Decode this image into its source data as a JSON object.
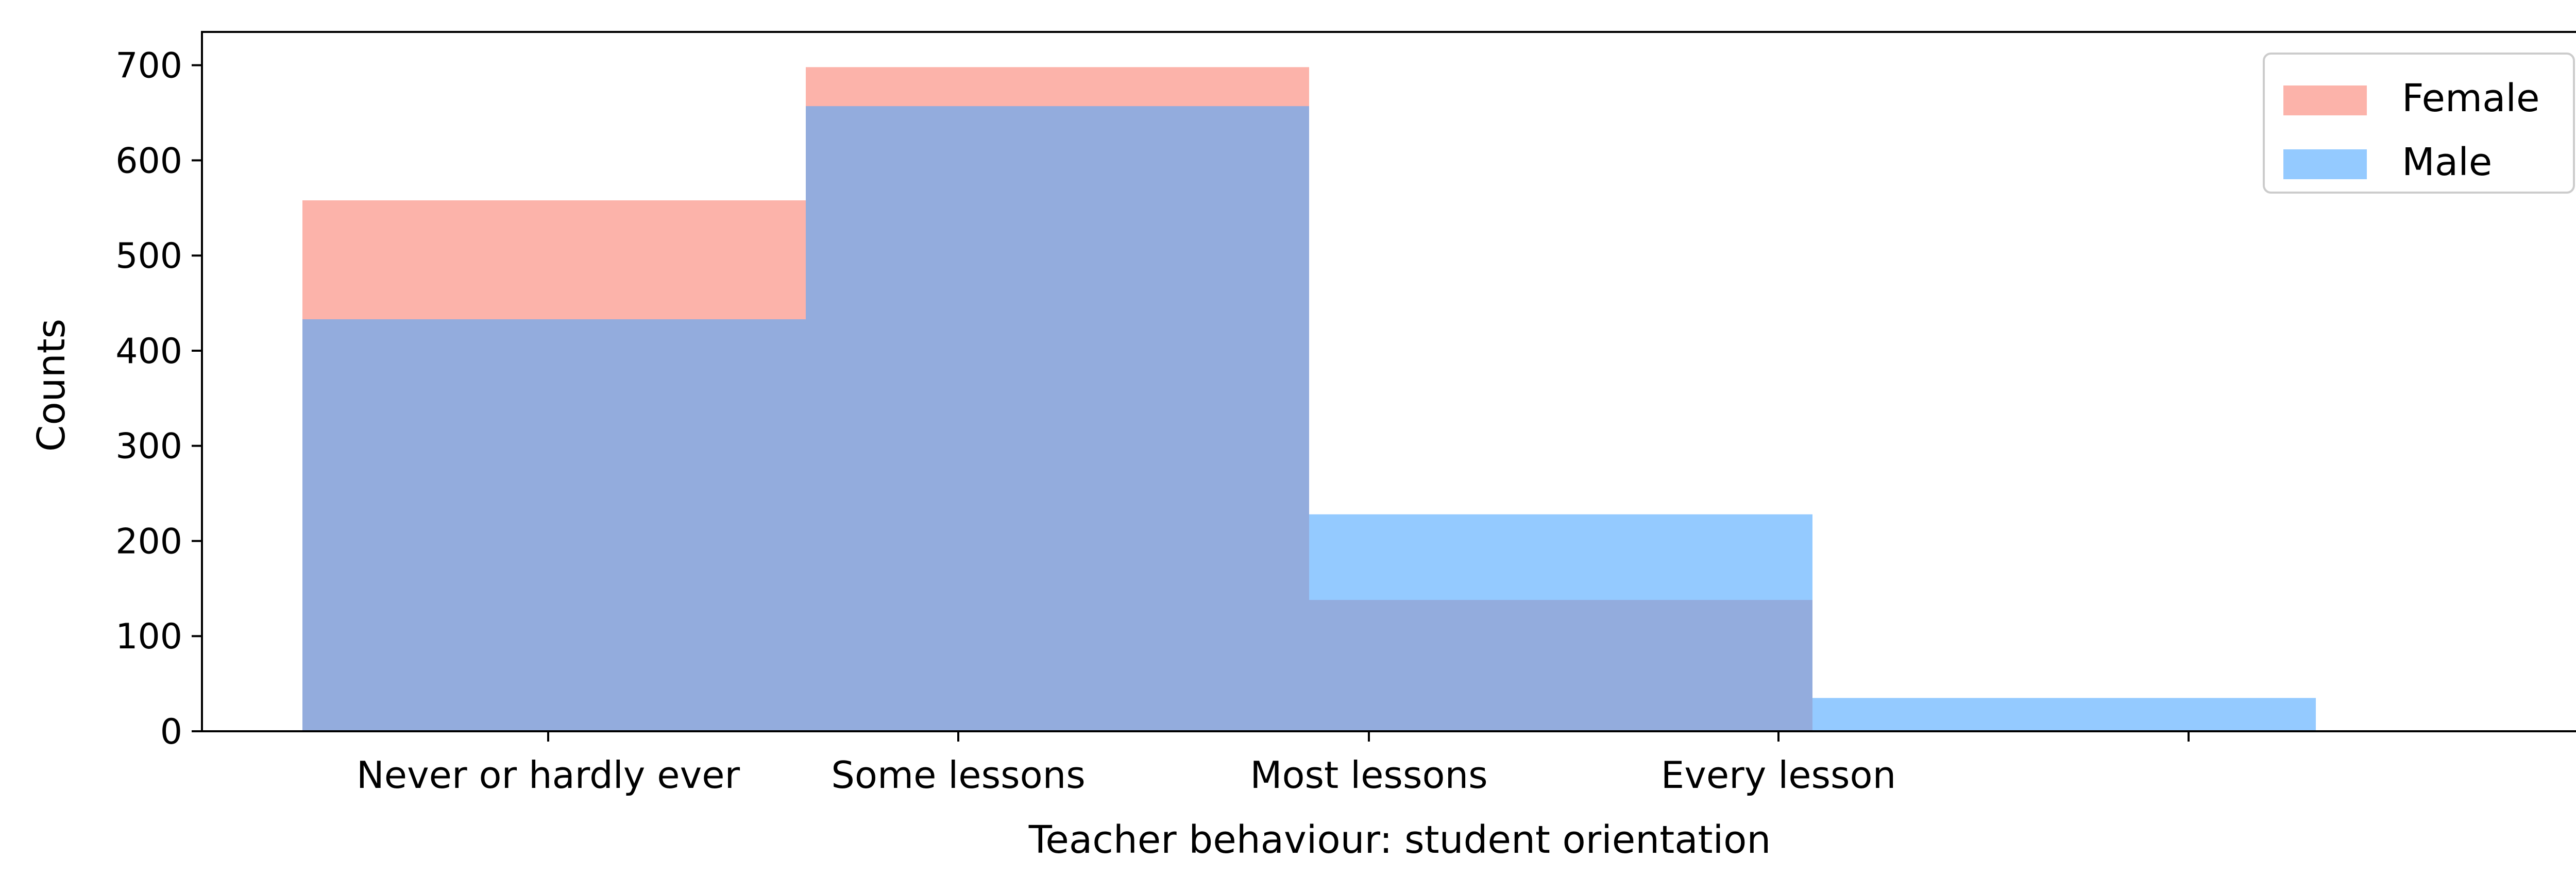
{
  "chart_data": {
    "type": "bar",
    "categories": [
      "Never or hardly ever",
      "Some lessons",
      "Most lessons",
      "Every lesson"
    ],
    "xlabel": "Teacher behaviour: student orientation",
    "ylabel": "Counts",
    "ylim": [
      0,
      735
    ],
    "yticks": [
      0,
      100,
      200,
      300,
      400,
      500,
      600,
      700
    ],
    "grid": false,
    "legend_position": "top-right",
    "series": [
      {
        "name": "Female",
        "color": "#fa8072",
        "opacity": 0.6,
        "values": [
          558,
          698,
          138,
          0
        ]
      },
      {
        "name": "Male",
        "color": "#4da6ff",
        "opacity": 0.6,
        "values": [
          433,
          657,
          228,
          35
        ]
      }
    ]
  }
}
